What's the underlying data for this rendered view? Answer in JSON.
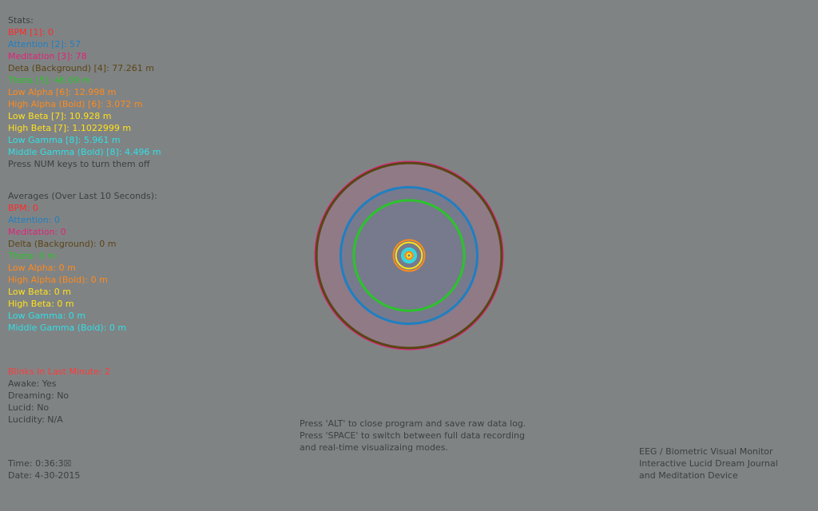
{
  "stats": {
    "header": "Stats:",
    "items": [
      {
        "label": "BPM [1]: 0",
        "color": "#ff2a2a"
      },
      {
        "label": "Attention [2]: 57",
        "color": "#1f7fc2"
      },
      {
        "label": "Meditation [3]: 78",
        "color": "#e0237a"
      },
      {
        "label": "Deta (Background) [4]: 77.261 m",
        "color": "#5a4515"
      },
      {
        "label": "Theta [5]: 46.09 m",
        "color": "#2bc42b"
      },
      {
        "label": "Low Alpha [6]: 12.998 m",
        "color": "#ff8a1a"
      },
      {
        "label": "High Alpha (Bold) [6]: 3.072 m",
        "color": "#ff8a1a"
      },
      {
        "label": "Low Beta [7]: 10.928 m",
        "color": "#ffe11a"
      },
      {
        "label": "High Beta [7]: 1.1022999 m",
        "color": "#ffe11a"
      },
      {
        "label": "Low Gamma [8]: 5.961 m",
        "color": "#2ee0e6"
      },
      {
        "label": "Middle Gamma (Bold) [8]: 4.496 m",
        "color": "#2ee0e6"
      }
    ],
    "hint": "Press NUM keys to turn them off"
  },
  "averages": {
    "header": "Averages (Over Last 10 Seconds):",
    "items": [
      {
        "label": "BPM: 0",
        "color": "#ff2a2a"
      },
      {
        "label": "Attention: 0",
        "color": "#1f7fc2"
      },
      {
        "label": "Meditation: 0",
        "color": "#e0237a"
      },
      {
        "label": "Delta (Background):  0 m",
        "color": "#5a4515"
      },
      {
        "label": "Theta: 0 m",
        "color": "#2bc42b"
      },
      {
        "label": "Low Alpha: 0 m",
        "color": "#ff8a1a"
      },
      {
        "label": "High Alpha (Bold): 0 m",
        "color": "#ff8a1a"
      },
      {
        "label": "Low Beta:  0 m",
        "color": "#ffe11a"
      },
      {
        "label": "High Beta:  0 m",
        "color": "#ffe11a"
      },
      {
        "label": "Low Gamma:  0 m",
        "color": "#2ee0e6"
      },
      {
        "label": "Middle Gamma (Bold): 0 m",
        "color": "#2ee0e6"
      }
    ]
  },
  "status": {
    "blinks": {
      "label": "Blinks In Last Minute: 2",
      "color": "#ff3a3a"
    },
    "awake": "Awake: Yes",
    "dreaming": "Dreaming: No",
    "lucid": "Lucid: No",
    "lucidity": "Lucidity: N/A"
  },
  "clock": {
    "time": "Time: 0:36:3☒",
    "date": "Date: 4-30-2015"
  },
  "instructions": "Press 'ALT' to close program and save raw data log.\nPress 'SPACE' to switch between full data recording\nand real-time visualizaing modes.",
  "title_block": "EEG / Biometric Visual Monitor\nInteractive Lucid Dream Journal\nand Meditation Device",
  "visualizer": {
    "rings": [
      {
        "name": "meditation-ring",
        "value": 78,
        "stroke": "#e0237a",
        "fill": "#8f7a86"
      },
      {
        "name": "attention-ring",
        "value": 57,
        "stroke": "#1f7fc2",
        "fill": "#777a8c"
      },
      {
        "name": "delta-ring",
        "value": 77.261,
        "stroke": "#5a4515",
        "fill": "none"
      },
      {
        "name": "theta-ring",
        "value": 46.09,
        "stroke": "#2bc42b",
        "fill": "none"
      },
      {
        "name": "low-alpha-ring",
        "value": 12.998,
        "stroke": "#ff8a1a",
        "fill": "none"
      },
      {
        "name": "low-beta-ring",
        "value": 10.928,
        "stroke": "#ffe11a",
        "fill": "none"
      },
      {
        "name": "low-gamma-ring",
        "value": 5.961,
        "stroke": "#2ee0e6",
        "fill": "none"
      },
      {
        "name": "middle-gamma-ring",
        "value": 4.496,
        "stroke": "#2ee0e6",
        "fill": "none"
      },
      {
        "name": "high-alpha-ring",
        "value": 3.072,
        "stroke": "#ff8a1a",
        "fill": "none"
      },
      {
        "name": "high-beta-ring",
        "value": 1.1022999,
        "stroke": "#ffe11a",
        "fill": "none"
      }
    ]
  }
}
